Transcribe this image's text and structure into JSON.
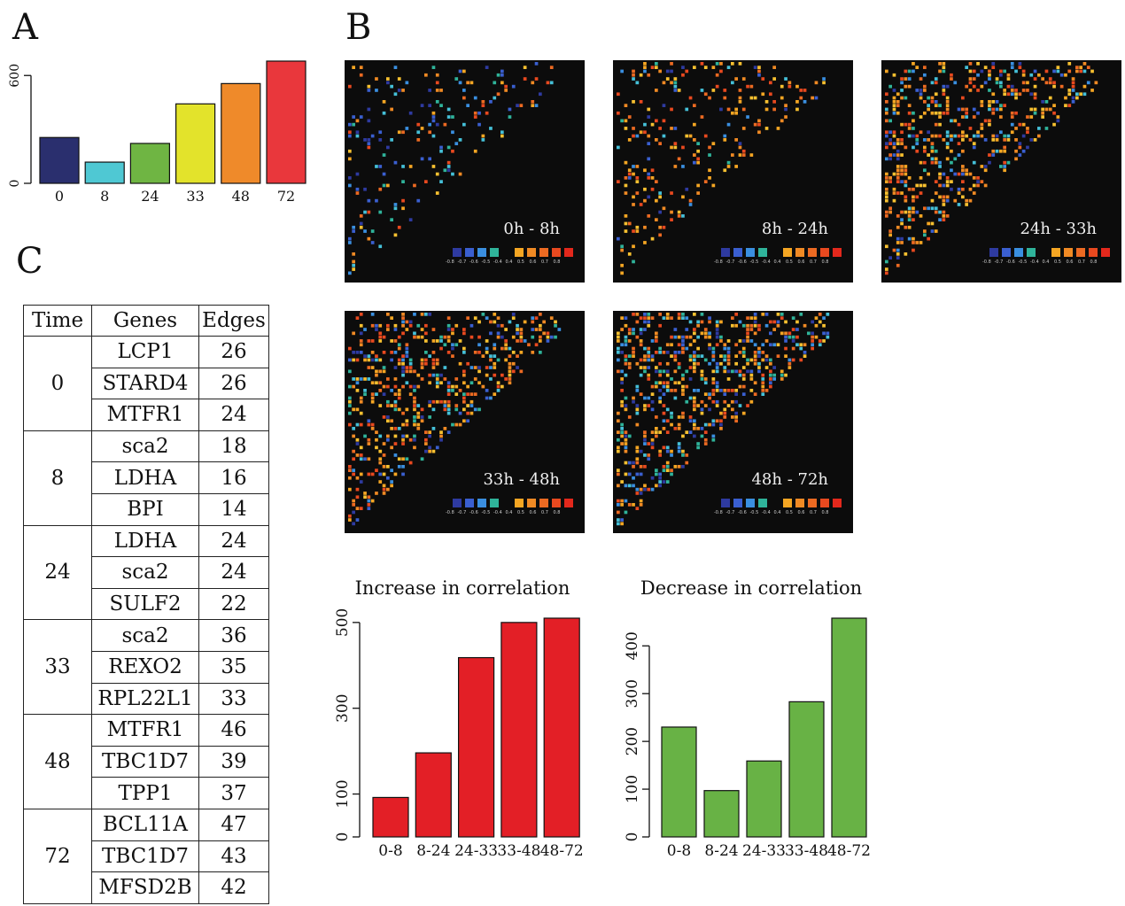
{
  "panels": {
    "a": "A",
    "b": "B",
    "c": "C"
  },
  "chart_data": [
    {
      "type": "bar",
      "categories": [
        "0",
        "8",
        "24",
        "33",
        "48",
        "72"
      ],
      "values": [
        255,
        118,
        222,
        442,
        555,
        680
      ],
      "colors": [
        "#2a2f6e",
        "#4fc8d3",
        "#6fb543",
        "#e3e32b",
        "#ef8a2a",
        "#e9373c"
      ],
      "yticks": [
        0,
        600
      ],
      "ylim": [
        0,
        680
      ]
    },
    {
      "type": "bar",
      "title": "Increase in correlation",
      "categories": [
        "0-8",
        "8-24",
        "24-33",
        "33-48",
        "48-72"
      ],
      "values": [
        92,
        196,
        418,
        500,
        510
      ],
      "color": "#e31f26",
      "yticks": [
        0,
        100,
        300,
        500
      ],
      "ylim": [
        0,
        510
      ]
    },
    {
      "type": "bar",
      "title": "Decrease in correlation",
      "categories": [
        "0-8",
        "8-24",
        "24-33",
        "33-48",
        "48-72"
      ],
      "values": [
        230,
        97,
        159,
        283,
        458
      ],
      "color": "#68b245",
      "yticks": [
        0,
        100,
        200,
        300,
        400
      ],
      "ylim": [
        0,
        458
      ]
    },
    {
      "type": "table",
      "headers": [
        "Time",
        "Genes",
        "Edges"
      ],
      "groups": [
        {
          "time": "0",
          "rows": [
            [
              "LCP1",
              "26"
            ],
            [
              "STARD4",
              "26"
            ],
            [
              "MTFR1",
              "24"
            ]
          ]
        },
        {
          "time": "8",
          "rows": [
            [
              "sca2",
              "18"
            ],
            [
              "LDHA",
              "16"
            ],
            [
              "BPI",
              "14"
            ]
          ]
        },
        {
          "time": "24",
          "rows": [
            [
              "LDHA",
              "24"
            ],
            [
              "sca2",
              "24"
            ],
            [
              "SULF2",
              "22"
            ]
          ]
        },
        {
          "time": "33",
          "rows": [
            [
              "sca2",
              "36"
            ],
            [
              "REXO2",
              "35"
            ],
            [
              "RPL22L1",
              "33"
            ]
          ]
        },
        {
          "time": "48",
          "rows": [
            [
              "MTFR1",
              "46"
            ],
            [
              "TBC1D7",
              "39"
            ],
            [
              "TPP1",
              "37"
            ]
          ]
        },
        {
          "time": "72",
          "rows": [
            [
              "BCL11A",
              "47"
            ],
            [
              "TBC1D7",
              "43"
            ],
            [
              "MFSD2B",
              "42"
            ]
          ]
        }
      ]
    },
    {
      "type": "heatmap",
      "panels": [
        "0h - 8h",
        "8h - 24h",
        "24h - 33h",
        "33h - 48h",
        "48h - 72h"
      ],
      "legend_ticks": [
        "-0.8",
        "-0.7",
        "-0.6",
        "-0.5",
        "-0.4",
        "0.4",
        "0.5",
        "0.6",
        "0.7",
        "0.8"
      ],
      "legend_colors": [
        "#2e3aa0",
        "#3a5fd0",
        "#3a8fe0",
        "#2fb39a",
        "#f5a623",
        "#f08a24",
        "#ec6a22",
        "#e8491f",
        "#e3281c"
      ]
    }
  ]
}
